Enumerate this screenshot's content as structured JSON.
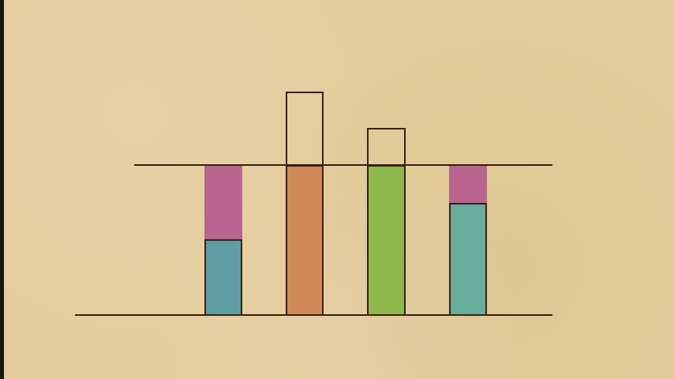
{
  "colors": {
    "background": "#e4cd9c",
    "outline": "#3a1f12",
    "teal_blue": "#5e9ea3",
    "pink": "#b8648e",
    "orange": "#cf8a58",
    "green": "#8db84b",
    "teal_green": "#68ac9b"
  }
}
